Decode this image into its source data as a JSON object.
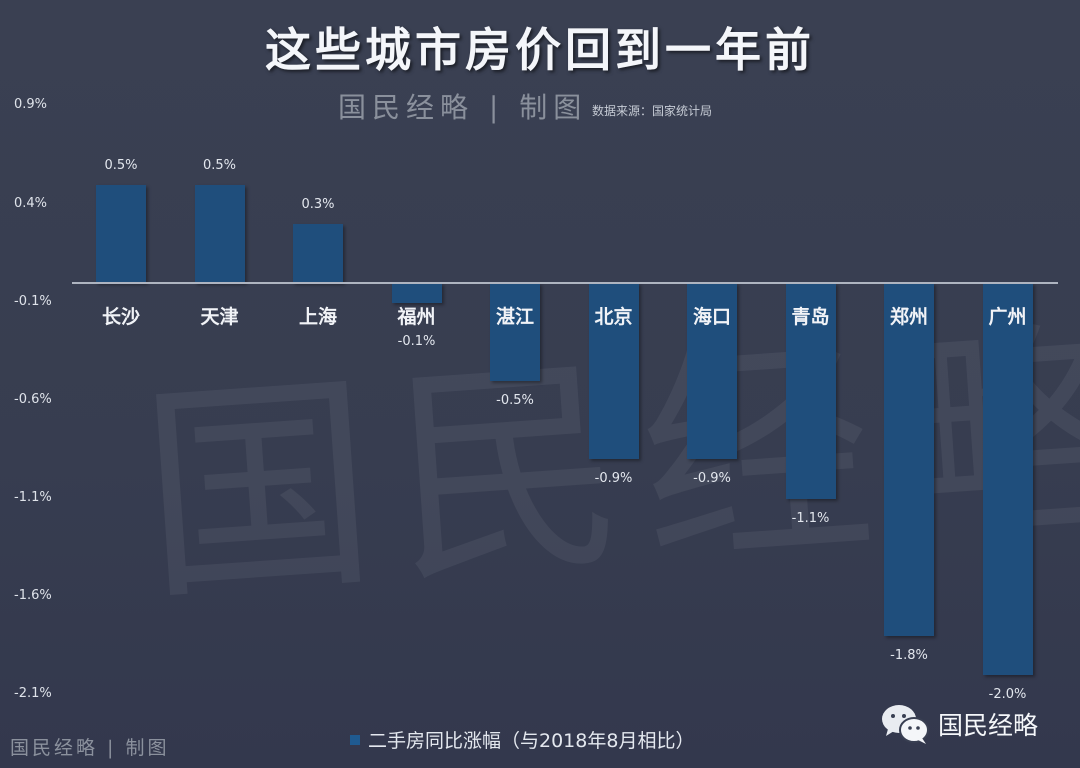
{
  "header": {
    "title": "这些城市房价回到一年前",
    "brand": "国民经略 | 制图",
    "source": "数据来源：国家统计局"
  },
  "footer": {
    "brand": "国民经略 | 制图",
    "legend": "二手房同比涨幅（与2018年8月相比）",
    "wechat_account": "国民经略"
  },
  "colors": {
    "background": "#393f52",
    "bar": "#1f4e7c",
    "axis": "#aeb4c0",
    "text": "#e8ecf2"
  },
  "chart_data": {
    "type": "bar",
    "title": "这些城市房价回到一年前",
    "xlabel": "",
    "ylabel": "",
    "categories": [
      "长沙",
      "天津",
      "上海",
      "福州",
      "湛江",
      "北京",
      "海口",
      "青岛",
      "郑州",
      "广州"
    ],
    "series": [
      {
        "name": "二手房同比涨幅（与2018年8月相比）",
        "values": [
          0.5,
          0.5,
          0.3,
          -0.1,
          -0.5,
          -0.9,
          -0.9,
          -1.1,
          -1.8,
          -2.0
        ]
      }
    ],
    "value_labels": [
      "0.5%",
      "0.5%",
      "0.3%",
      "-0.1%",
      "-0.5%",
      "-0.9%",
      "-0.9%",
      "-1.1%",
      "-1.8%",
      "-2.0%"
    ],
    "yticks": [
      "0.9%",
      "0.4%",
      "-0.1%",
      "-0.6%",
      "-1.1%",
      "-1.6%",
      "-2.1%"
    ],
    "ylim": [
      -2.1,
      0.9
    ],
    "grid": false,
    "legend_position": "bottom",
    "source": "数据来源：国家统计局"
  }
}
